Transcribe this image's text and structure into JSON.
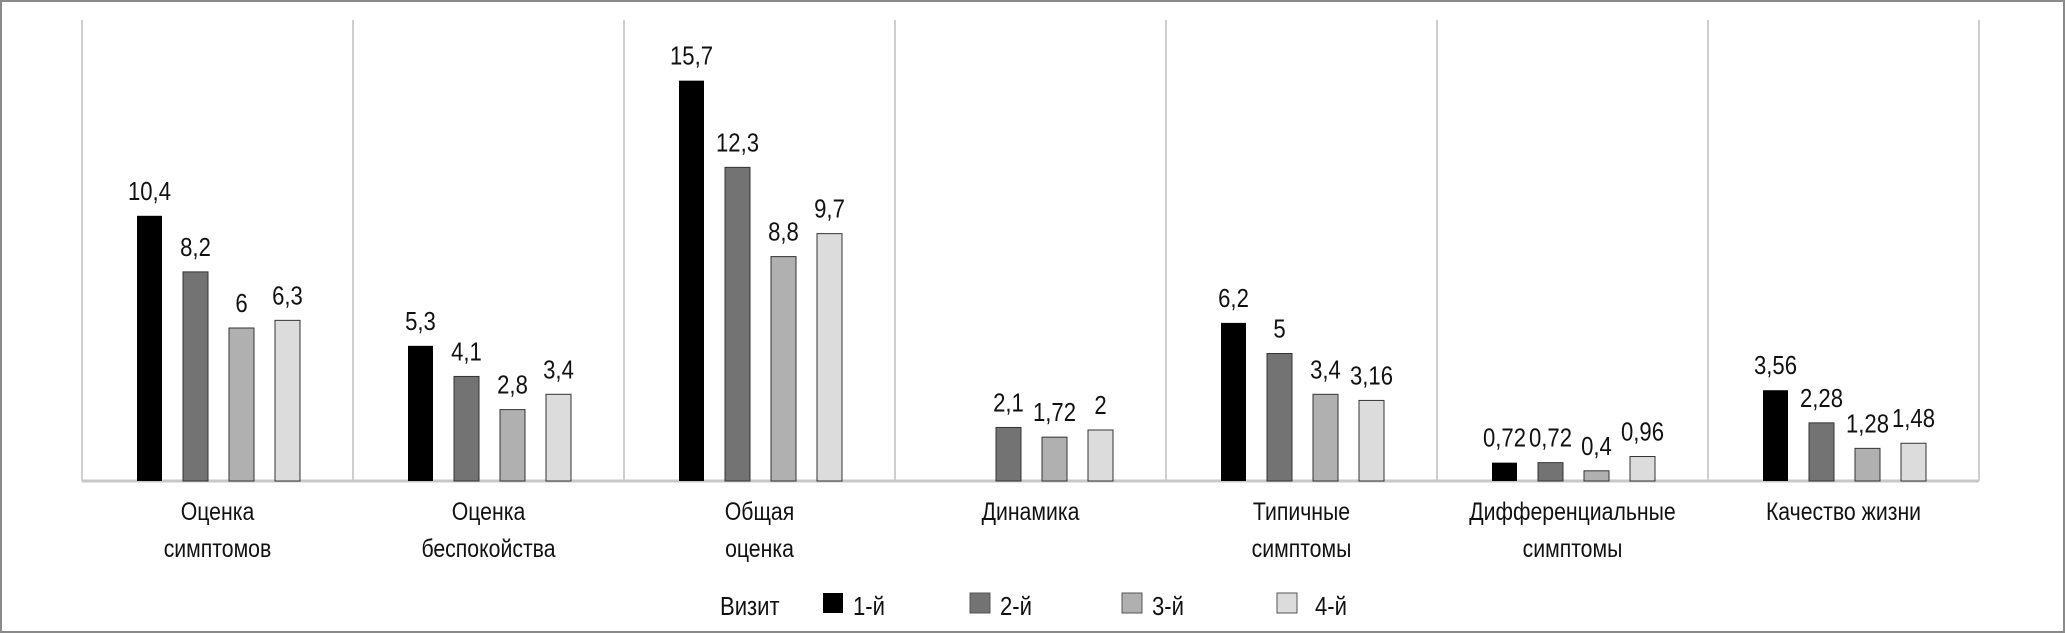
{
  "chart_data": {
    "type": "bar",
    "title": "",
    "xlabel": "",
    "ylabel": "",
    "ylim": [
      0,
      17
    ],
    "grid": false,
    "legend_placement": "bottom",
    "legend_title": "Визит",
    "categories": [
      [
        "Оценка",
        "симптомов"
      ],
      [
        "Оценка",
        "беспокойства"
      ],
      [
        "Общая",
        "оценка"
      ],
      [
        "Динамика"
      ],
      [
        "Типичные",
        "симптомы"
      ],
      [
        "Дифференциальные",
        "симптомы"
      ],
      [
        "Качество жизни"
      ]
    ],
    "series": [
      {
        "name": "1-й",
        "color": "#000000",
        "values": [
          10.4,
          5.3,
          15.7,
          null,
          6.2,
          0.72,
          3.56
        ],
        "labels": [
          "10,4",
          "5,3",
          "15,7",
          "",
          "6,2",
          "0,72",
          "3,56"
        ]
      },
      {
        "name": "2-й",
        "color": "#737373",
        "values": [
          8.2,
          4.1,
          12.3,
          2.1,
          5,
          0.72,
          2.28
        ],
        "labels": [
          "8,2",
          "4,1",
          "12,3",
          "2,1",
          "5",
          "0,72",
          "2,28"
        ]
      },
      {
        "name": "3-й",
        "color": "#b0b0b0",
        "values": [
          6,
          2.8,
          8.8,
          1.72,
          3.4,
          0.4,
          1.28
        ],
        "labels": [
          "6",
          "2,8",
          "8,8",
          "1,72",
          "3,4",
          "0,4",
          "1,28"
        ]
      },
      {
        "name": "4-й",
        "color": "#dcdcdc",
        "values": [
          6.3,
          3.4,
          9.7,
          2,
          3.16,
          0.96,
          1.48
        ],
        "labels": [
          "6,3",
          "3,4",
          "9,7",
          "2",
          "3,16",
          "0,96",
          "1,48"
        ]
      }
    ]
  }
}
